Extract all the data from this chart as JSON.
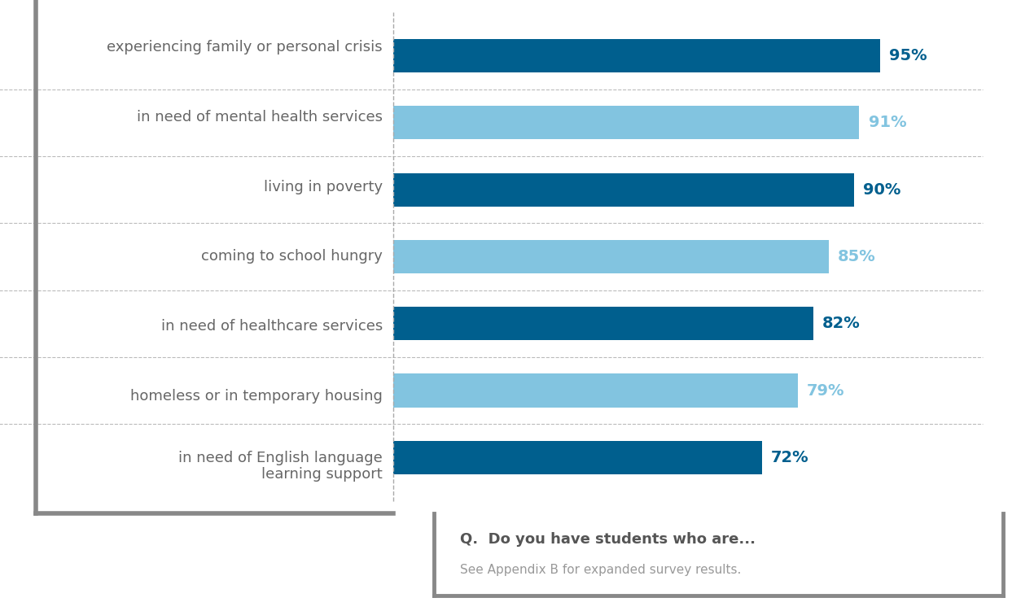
{
  "categories": [
    "experiencing family or personal crisis",
    "in need of mental health services",
    "living in poverty",
    "coming to school hungry",
    "in need of healthcare services",
    "homeless or in temporary housing",
    "in need of English language\nlearning support"
  ],
  "values": [
    95,
    91,
    90,
    85,
    82,
    79,
    72
  ],
  "bar_colors": [
    "#005f8e",
    "#82c4e0",
    "#005f8e",
    "#82c4e0",
    "#005f8e",
    "#82c4e0",
    "#005f8e"
  ],
  "label_colors": [
    "#005f8e",
    "#82c4e0",
    "#005f8e",
    "#82c4e0",
    "#005f8e",
    "#82c4e0",
    "#005f8e"
  ],
  "background_color": "#ffffff",
  "bar_label_fontsize": 14,
  "category_fontsize": 13,
  "xlim": [
    0,
    115
  ],
  "question_text": "Q.  Do you have students who are...",
  "subtitle_text": "See Appendix B for expanded survey results.",
  "question_color": "#555555",
  "subtitle_color": "#999999",
  "grid_color": "#bbbbbb",
  "divider_color": "#aaaaaa",
  "box_border_color": "#888888",
  "left_border_color": "#888888"
}
